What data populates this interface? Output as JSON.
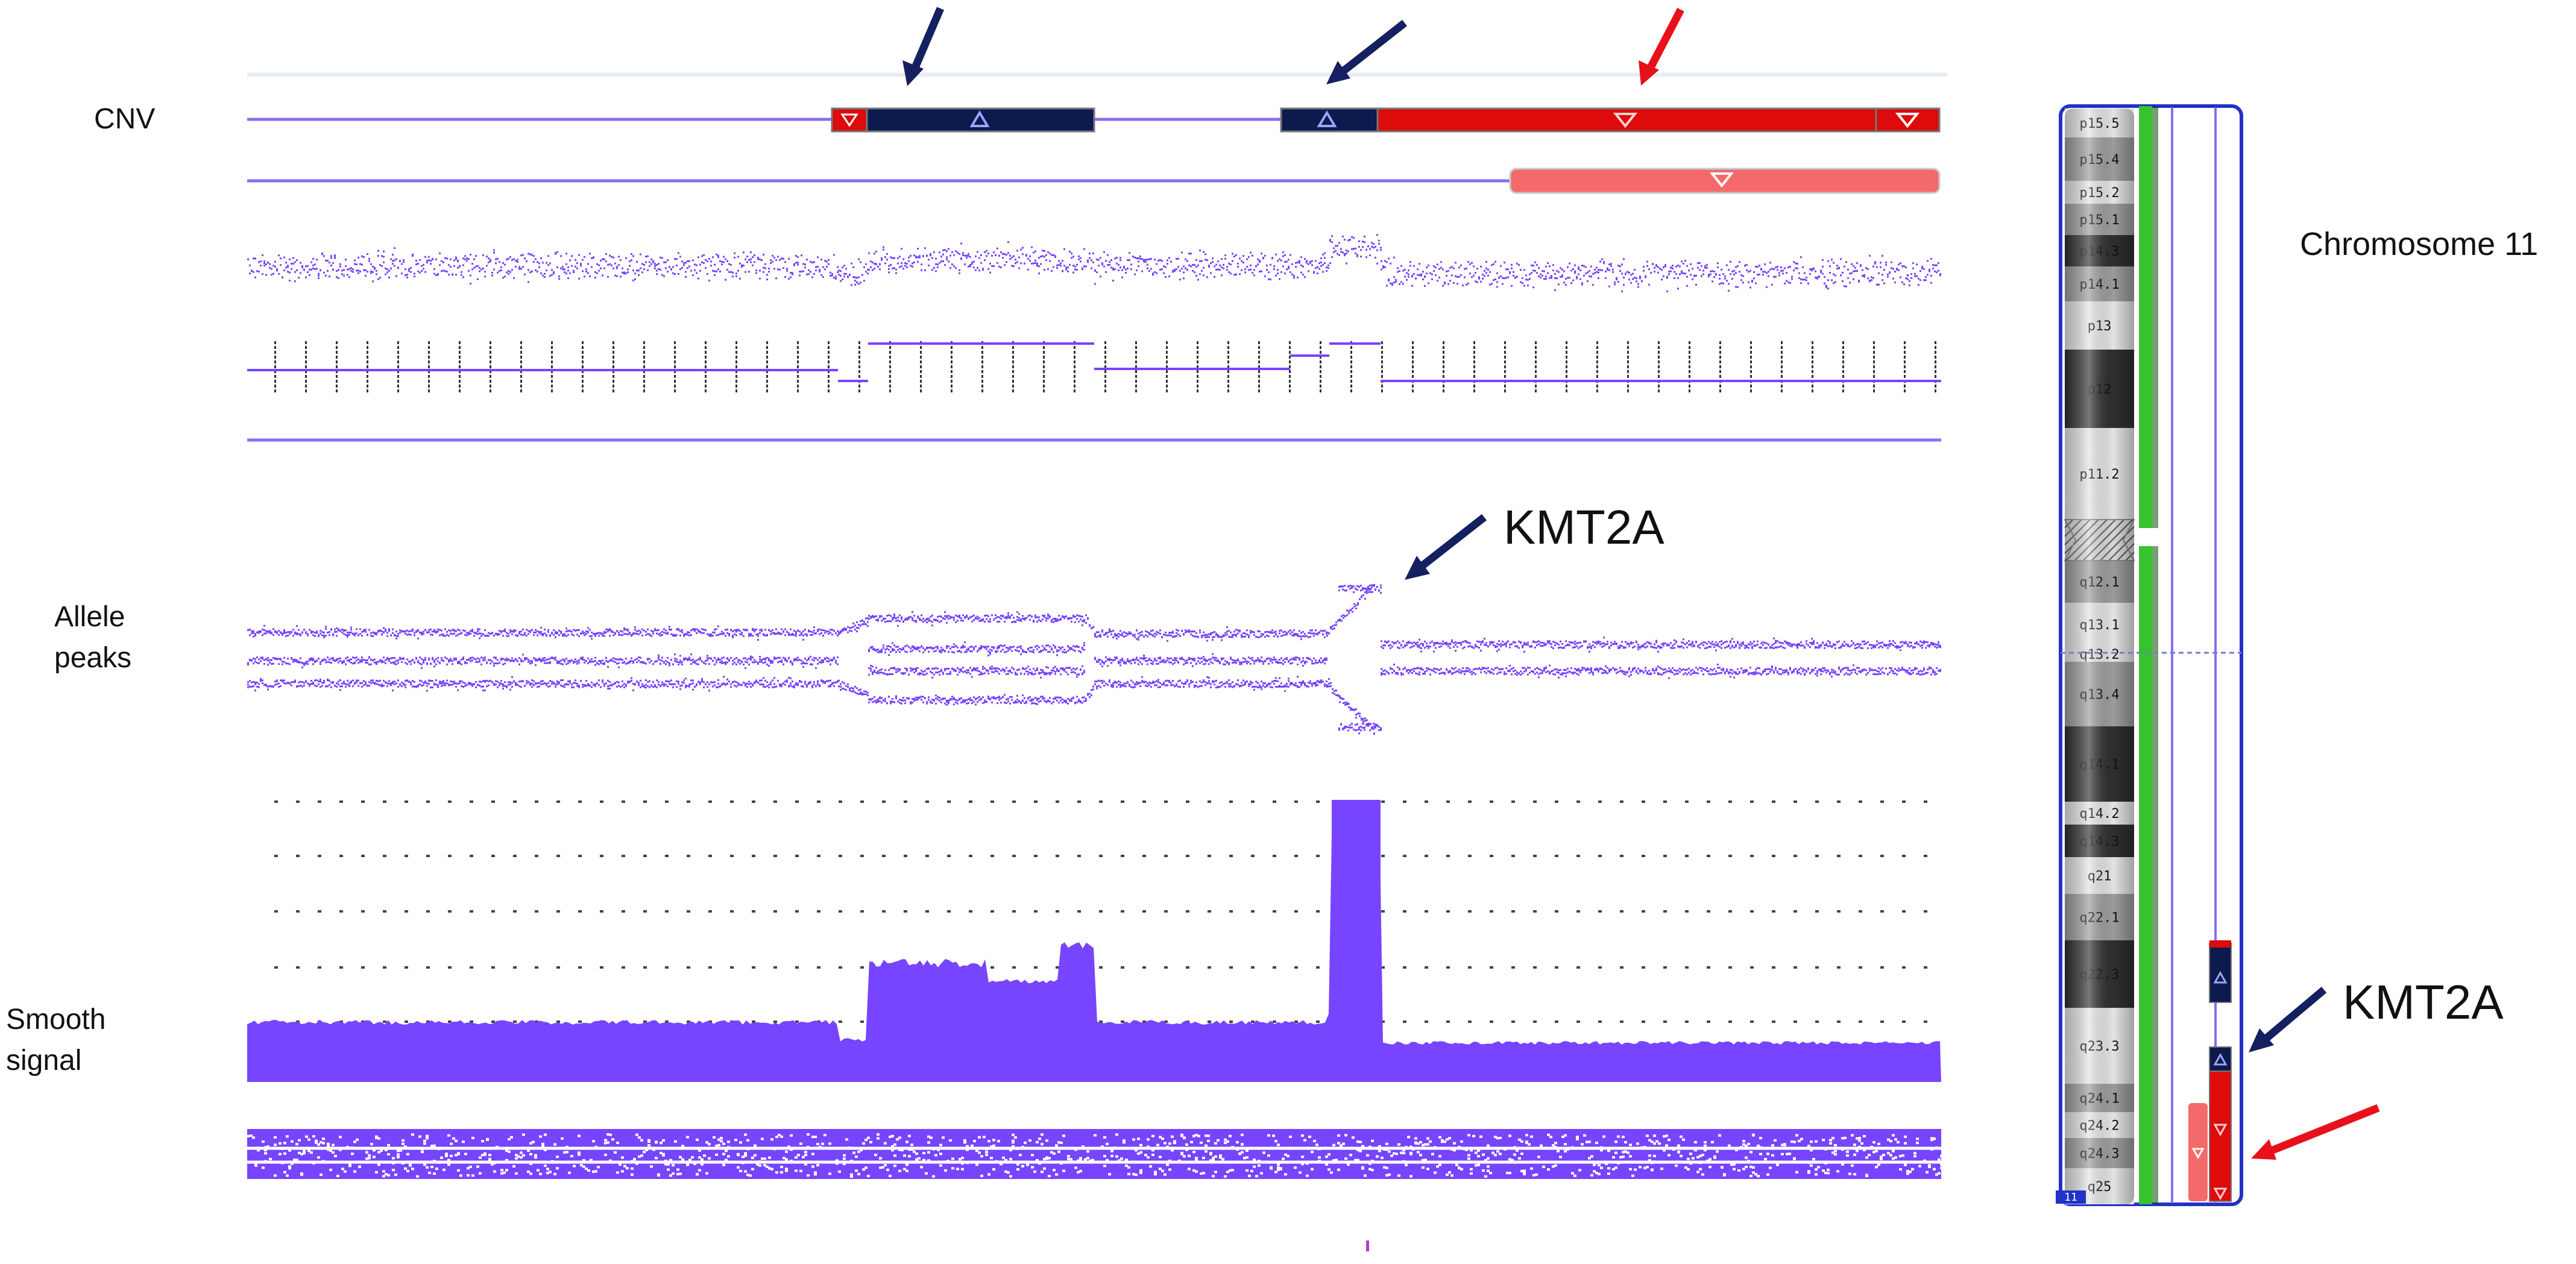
{
  "tracks": {
    "cnv": "CNV",
    "allele_line1": "Allele",
    "allele_line2": "peaks",
    "smooth_line1": "Smooth",
    "smooth_line2": "signal"
  },
  "annotations": {
    "gene_main": "KMT2A",
    "gene_ideogram": "KMT2A",
    "chromosome_title": "Chromosome 11"
  },
  "ideogram": {
    "number_badge": "11",
    "bands": [
      {
        "name": "p15.5",
        "shade": "light"
      },
      {
        "name": "p15.4",
        "shade": "gray"
      },
      {
        "name": "p15.2",
        "shade": "light"
      },
      {
        "name": "p15.1",
        "shade": "gray"
      },
      {
        "name": "p14.3",
        "shade": "dark"
      },
      {
        "name": "p14.1",
        "shade": "gray"
      },
      {
        "name": "p13",
        "shade": "light"
      },
      {
        "name": "p12",
        "shade": "dark"
      },
      {
        "name": "p11.2",
        "shade": "light"
      },
      {
        "name": "q12.1",
        "shade": "gray"
      },
      {
        "name": "q13.1",
        "shade": "light"
      },
      {
        "name": "q13.2",
        "shade": "light"
      },
      {
        "name": "q13.4",
        "shade": "gray"
      },
      {
        "name": "q14.1",
        "shade": "dark"
      },
      {
        "name": "q14.2",
        "shade": "light"
      },
      {
        "name": "q14.3",
        "shade": "dark"
      },
      {
        "name": "q21",
        "shade": "light"
      },
      {
        "name": "q22.1",
        "shade": "gray"
      },
      {
        "name": "q22.3",
        "shade": "dark"
      },
      {
        "name": "q23.3",
        "shade": "light"
      },
      {
        "name": "q24.1",
        "shade": "gray"
      },
      {
        "name": "q24.2",
        "shade": "light"
      },
      {
        "name": "q24.3",
        "shade": "gray"
      },
      {
        "name": "q25",
        "shade": "light"
      }
    ]
  },
  "colors": {
    "signal": "#7744ff",
    "gain": "#0d1a4d",
    "loss": "#dd0b0b",
    "loss_mosaic": "#f46a6a",
    "arrow_blue": "#14205f",
    "arrow_red": "#e8101a",
    "ideo_green": "#36c32d"
  }
}
